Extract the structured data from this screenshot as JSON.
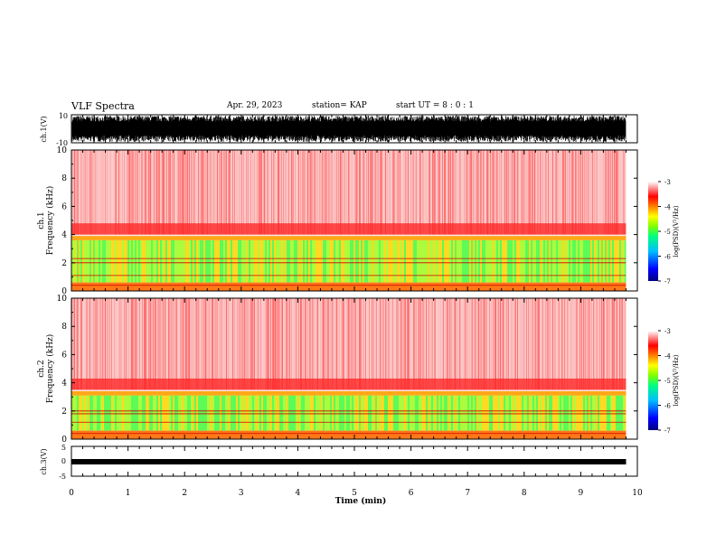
{
  "header": {
    "title": "VLF Spectra",
    "date": "Apr. 29, 2023",
    "station": "station= KAP",
    "start": "start  UT =  8 : 0 : 1"
  },
  "chart_data": [
    {
      "type": "line",
      "name": "ch1-waveform",
      "ylabel": "ch.1(V)",
      "ylim": [
        -10,
        10
      ],
      "ytick_labels": [
        "10",
        "-10"
      ],
      "description_values": "dense noisy waveform filling roughly -10 to 10 V",
      "xlim": [
        0,
        10
      ]
    },
    {
      "type": "heatmap",
      "name": "ch1-spectrogram",
      "ylabel": "ch.1\nFrequency (kHz)",
      "ylabel_line1": "ch.1",
      "ylabel_line2": "Frequency  (kHz)",
      "ylim": [
        0,
        10
      ],
      "ytick_labels": [
        "0",
        "2",
        "4",
        "6",
        "8",
        "10"
      ],
      "xlim": [
        0,
        9.8
      ],
      "colorbar": {
        "label": "log(PSD)(V²/Hz)",
        "range": [
          -7,
          -3
        ],
        "tick_labels": [
          "-3",
          "-4",
          "-5",
          "-6",
          "-7"
        ]
      },
      "bands_khz": {
        "strong_red_above": 4,
        "green_yellow_band": [
          0.5,
          3.8
        ]
      }
    },
    {
      "type": "heatmap",
      "name": "ch2-spectrogram",
      "ylabel_line1": "ch.2",
      "ylabel_line2": "Frequency  (kHz)",
      "ylim": [
        0,
        10
      ],
      "ytick_labels": [
        "0",
        "2",
        "4",
        "6",
        "8",
        "10"
      ],
      "xlim": [
        0,
        9.8
      ],
      "colorbar": {
        "label": "log(PSD)(V²/Hz)",
        "range": [
          -7,
          -3
        ],
        "tick_labels": [
          "-3",
          "-4",
          "-5",
          "-6",
          "-7"
        ]
      },
      "bands_khz": {
        "strong_red_above": 3.5,
        "green_yellow_band": [
          0.5,
          3.2
        ]
      }
    },
    {
      "type": "line",
      "name": "ch3-waveform",
      "ylabel": "ch.3(V)",
      "ylim": [
        -5,
        5
      ],
      "ytick_labels": [
        "5",
        "0",
        "-5"
      ],
      "level_v": 0,
      "xlim": [
        0,
        9.8
      ]
    }
  ],
  "x_axis": {
    "label": "Time  (min)",
    "tick_labels": [
      "0",
      "1",
      "2",
      "3",
      "4",
      "5",
      "6",
      "7",
      "8",
      "9",
      "10"
    ],
    "range": [
      0,
      10
    ]
  },
  "colors": {
    "colormap": [
      "#00007f",
      "#0000ff",
      "#00bfff",
      "#00ff80",
      "#80ff00",
      "#ffff00",
      "#ff8000",
      "#ff0000",
      "#ffffff"
    ]
  }
}
